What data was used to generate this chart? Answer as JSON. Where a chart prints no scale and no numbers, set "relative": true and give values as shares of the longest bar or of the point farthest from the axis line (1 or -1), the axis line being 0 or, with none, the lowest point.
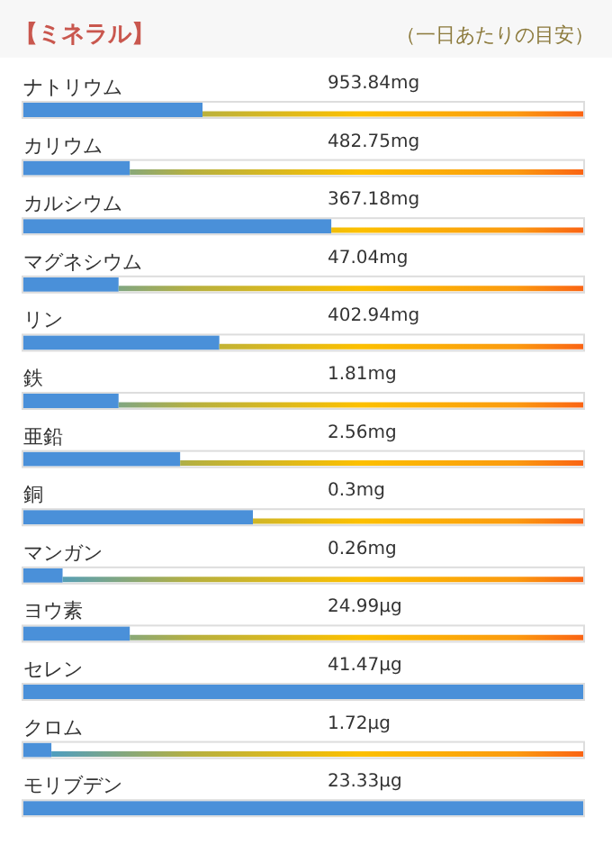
{
  "chart_data": {
    "type": "bar",
    "orientation": "horizontal",
    "relative": true,
    "title": "【ミネラル】",
    "subtitle": "（一日あたりの目安）",
    "color": "#4a90d9",
    "categories": [
      "ナトリウム",
      "カリウム",
      "カルシウム",
      "マグネシウム",
      "リン",
      "鉄",
      "亜鉛",
      "銅",
      "マンガン",
      "ヨウ素",
      "セレン",
      "クロム",
      "モリブデン"
    ],
    "values": [
      0.32,
      0.19,
      0.55,
      0.17,
      0.35,
      0.17,
      0.28,
      0.41,
      0.07,
      0.19,
      1,
      0.05,
      1
    ],
    "annotations": [
      "953.84mg",
      "482.75mg",
      "367.18mg",
      "47.04mg",
      "402.94mg",
      "1.81mg",
      "2.56mg",
      "0.3mg",
      "0.26mg",
      "24.99μg",
      "41.47μg",
      "1.72μg",
      "23.33μg"
    ]
  }
}
